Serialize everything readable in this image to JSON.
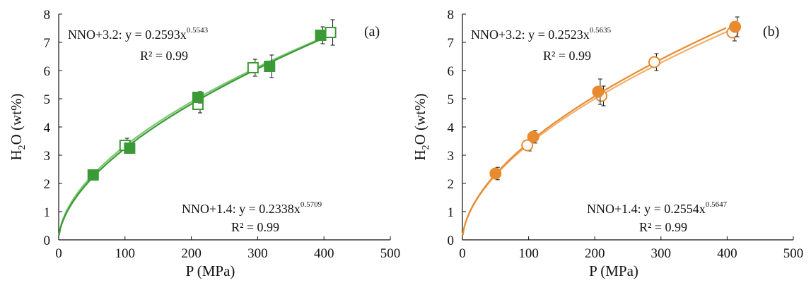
{
  "chart_data": [
    {
      "type": "scatter",
      "panel_label": "(a)",
      "xlabel": "P (MPa)",
      "ylabel_main": "H",
      "ylabel_sub": "2",
      "ylabel_rest": "O (wt%)",
      "xlim": [
        0,
        500
      ],
      "ylim": [
        0,
        8
      ],
      "xticks": [
        0,
        100,
        200,
        300,
        400,
        500
      ],
      "yticks": [
        0,
        1,
        2,
        3,
        4,
        5,
        6,
        7,
        8
      ],
      "grid": false,
      "color": "#3a9a35",
      "series": [
        {
          "name": "NNO+3.2",
          "marker": "square-open",
          "points": [
            {
              "x": 100,
              "y": 3.35,
              "err": 0.25
            },
            {
              "x": 210,
              "y": 4.8,
              "err": 0.3
            },
            {
              "x": 293,
              "y": 6.1,
              "err": 0.3
            },
            {
              "x": 410,
              "y": 7.35,
              "err": 0.45
            }
          ],
          "fit": {
            "a": 0.2593,
            "b": 0.5543
          },
          "eq_prefix": "NNO+3.2: y = 0.2593x",
          "eq_exp": "0.5543",
          "r2": "R² = 0.99"
        },
        {
          "name": "NNO+1.4",
          "marker": "square-filled",
          "points": [
            {
              "x": 52,
              "y": 2.3,
              "err": 0.1
            },
            {
              "x": 107,
              "y": 3.25,
              "err": 0.12
            },
            {
              "x": 210,
              "y": 5.05,
              "err": 0.2
            },
            {
              "x": 318,
              "y": 6.15,
              "err": 0.4
            },
            {
              "x": 395,
              "y": 7.25,
              "err": 0.3
            }
          ],
          "fit": {
            "a": 0.2338,
            "b": 0.5709
          },
          "eq_prefix": "NNO+1.4: y = 0.2338x",
          "eq_exp": "0.5709",
          "r2": "R² = 0.99"
        }
      ]
    },
    {
      "type": "scatter",
      "panel_label": "(b)",
      "xlabel": "P (MPa)",
      "ylabel_main": "H",
      "ylabel_sub": "2",
      "ylabel_rest": "O (wt%)",
      "xlim": [
        0,
        500
      ],
      "ylim": [
        0,
        8
      ],
      "xticks": [
        0,
        100,
        200,
        300,
        400,
        500
      ],
      "yticks": [
        0,
        1,
        2,
        3,
        4,
        5,
        6,
        7,
        8
      ],
      "grid": false,
      "color": "#e88a2e",
      "series": [
        {
          "name": "NNO+3.2",
          "marker": "circle-open",
          "points": [
            {
              "x": 98,
              "y": 3.35,
              "err": 0.2
            },
            {
              "x": 210,
              "y": 5.1,
              "err": 0.35
            },
            {
              "x": 290,
              "y": 6.3,
              "err": 0.3
            },
            {
              "x": 408,
              "y": 7.35,
              "err": 0.3
            }
          ],
          "fit": {
            "a": 0.2523,
            "b": 0.5635
          },
          "eq_prefix": "NNO+3.2: y = 0.2523x",
          "eq_exp": "0.5635",
          "r2": "R² = 0.99"
        },
        {
          "name": "NNO+1.4",
          "marker": "circle-filled",
          "points": [
            {
              "x": 50,
              "y": 2.35,
              "err": 0.22
            },
            {
              "x": 107,
              "y": 3.65,
              "err": 0.22
            },
            {
              "x": 205,
              "y": 5.25,
              "err": 0.45
            },
            {
              "x": 412,
              "y": 7.55,
              "err": 0.35
            }
          ],
          "fit": {
            "a": 0.2554,
            "b": 0.5647
          },
          "eq_prefix": "NNO+1.4: y = 0.2554x",
          "eq_exp": "0.5647",
          "r2": "R² = 0.99"
        }
      ]
    }
  ]
}
